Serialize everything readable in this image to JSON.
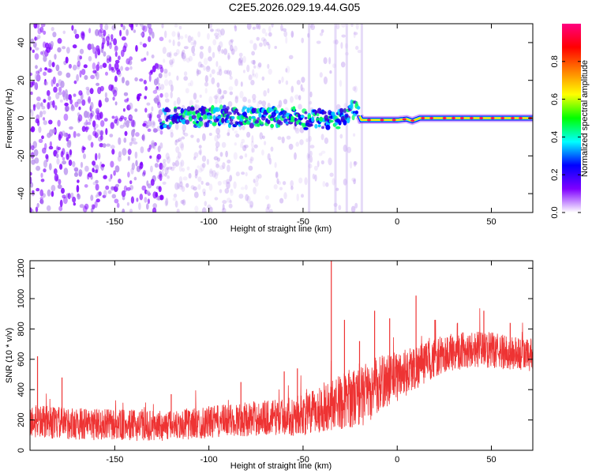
{
  "title": "C2E5.2026.029.19.44.G05",
  "chart_data": [
    {
      "type": "heatmap",
      "xlabel": "Height of straight line (km)",
      "ylabel": "Frequency (Hz)",
      "xlim": [
        -195,
        72
      ],
      "ylim": [
        -50,
        50
      ],
      "xticks": [
        -150,
        -100,
        -50,
        0,
        50
      ],
      "xtick_labels": [
        "-150",
        "-100",
        "-50",
        "0",
        "50"
      ],
      "yticks": [
        -40,
        -20,
        0,
        20,
        40
      ],
      "ytick_labels": [
        "-40",
        "-20",
        "0",
        "20",
        "40"
      ],
      "colorbar": {
        "label": "Normalized spectral amplitude",
        "range": [
          0,
          1
        ],
        "ticks": [
          0.0,
          0.2,
          0.4,
          0.6,
          0.8
        ],
        "tick_labels": [
          "0.0",
          "0.2",
          "0.4",
          "0.6",
          "0.8"
        ],
        "colormap": [
          "#ffffff",
          "#7f00ff",
          "#0000ff",
          "#00ffff",
          "#00ff00",
          "#ffff00",
          "#ff8000",
          "#ff0000",
          "#ff0080"
        ]
      },
      "signal_track": [
        {
          "x": -125,
          "y": 0
        },
        {
          "x": -110,
          "y": 0.5
        },
        {
          "x": -90,
          "y": 1
        },
        {
          "x": -70,
          "y": 1
        },
        {
          "x": -55,
          "y": 0
        },
        {
          "x": -45,
          "y": -1
        },
        {
          "x": -38,
          "y": -1
        },
        {
          "x": -32,
          "y": -2
        },
        {
          "x": -28,
          "y": 0
        },
        {
          "x": -24,
          "y": 4
        },
        {
          "x": -21,
          "y": 3
        },
        {
          "x": -19,
          "y": -1
        },
        {
          "x": -10,
          "y": -1
        },
        {
          "x": 0,
          "y": -1
        },
        {
          "x": 5,
          "y": -0.5
        },
        {
          "x": 8,
          "y": -1.5
        },
        {
          "x": 12,
          "y": 0
        },
        {
          "x": 30,
          "y": 0
        },
        {
          "x": 50,
          "y": 0
        },
        {
          "x": 72,
          "y": 0
        }
      ],
      "noise_region": {
        "x_from": -195,
        "x_to": -20,
        "strong_below_x": -125
      }
    },
    {
      "type": "line",
      "xlabel": "Height of straight line (km)",
      "ylabel": "SNR (10 * v/v)",
      "xlim": [
        -195,
        72
      ],
      "ylim": [
        0,
        1250
      ],
      "xticks": [
        -150,
        -100,
        -50,
        0,
        50
      ],
      "xtick_labels": [
        "-150",
        "-100",
        "-50",
        "0",
        "50"
      ],
      "yticks": [
        0,
        200,
        400,
        600,
        800,
        1000,
        1200
      ],
      "ytick_labels": [
        "0",
        "200",
        "400",
        "600",
        "800",
        "1000",
        "1200"
      ],
      "color": "#ee3333",
      "baseline": [
        {
          "x": -195,
          "y": 190
        },
        {
          "x": -180,
          "y": 180
        },
        {
          "x": -160,
          "y": 170
        },
        {
          "x": -140,
          "y": 165
        },
        {
          "x": -125,
          "y": 160
        },
        {
          "x": -110,
          "y": 175
        },
        {
          "x": -90,
          "y": 195
        },
        {
          "x": -70,
          "y": 215
        },
        {
          "x": -55,
          "y": 225
        },
        {
          "x": -45,
          "y": 245
        },
        {
          "x": -38,
          "y": 290
        },
        {
          "x": -30,
          "y": 320
        },
        {
          "x": -22,
          "y": 350
        },
        {
          "x": -15,
          "y": 370
        },
        {
          "x": -8,
          "y": 450
        },
        {
          "x": 0,
          "y": 490
        },
        {
          "x": 5,
          "y": 520
        },
        {
          "x": 12,
          "y": 560
        },
        {
          "x": 20,
          "y": 610
        },
        {
          "x": 30,
          "y": 650
        },
        {
          "x": 40,
          "y": 670
        },
        {
          "x": 50,
          "y": 660
        },
        {
          "x": 60,
          "y": 640
        },
        {
          "x": 72,
          "y": 625
        }
      ],
      "spread": [
        {
          "x": -195,
          "y": 110
        },
        {
          "x": -120,
          "y": 100
        },
        {
          "x": -60,
          "y": 120
        },
        {
          "x": -40,
          "y": 160
        },
        {
          "x": -20,
          "y": 200
        },
        {
          "x": 0,
          "y": 170
        },
        {
          "x": 20,
          "y": 130
        },
        {
          "x": 72,
          "y": 110
        }
      ],
      "spikes": [
        {
          "x": -191,
          "y": 620
        },
        {
          "x": -178,
          "y": 480
        },
        {
          "x": -120,
          "y": 370
        },
        {
          "x": -83,
          "y": 450
        },
        {
          "x": -60,
          "y": 520
        },
        {
          "x": -53,
          "y": 540
        },
        {
          "x": -35,
          "y": 1250
        },
        {
          "x": -28,
          "y": 860
        },
        {
          "x": -20,
          "y": 720
        },
        {
          "x": -12,
          "y": 920
        },
        {
          "x": -4,
          "y": 870
        },
        {
          "x": 10,
          "y": 1020
        },
        {
          "x": 20,
          "y": 860
        },
        {
          "x": 32,
          "y": 840
        },
        {
          "x": 46,
          "y": 920
        },
        {
          "x": 60,
          "y": 840
        }
      ]
    }
  ]
}
